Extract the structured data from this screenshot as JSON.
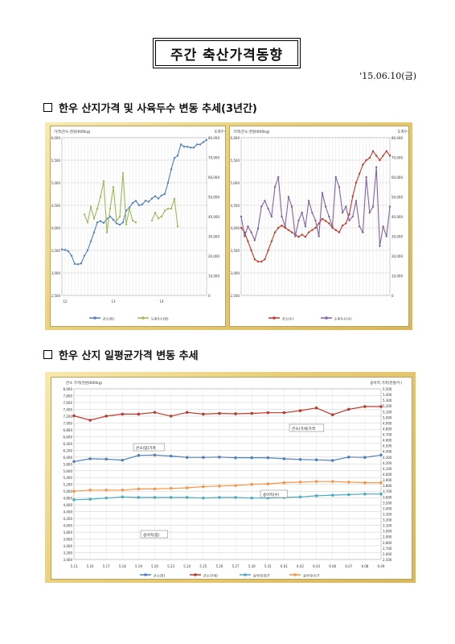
{
  "header": {
    "title": "주간 축산가격동향",
    "date": "'15.06.10(금)"
  },
  "sections": {
    "s1": "한우 산지가격 및 사육두수 변동 추세(3년간)",
    "s2": "한우 산지 일평균가격 변동 추세"
  },
  "colors": {
    "frame": "#e3c66c",
    "blue": "#4f81bd",
    "green": "#9bbb59",
    "red": "#c0392b",
    "purple": "#8064a2",
    "teal": "#4bacc6",
    "orange": "#f79646"
  },
  "chart_data": [
    {
      "type": "line",
      "left_axis_label": "가격(큰소:천원/600kg)",
      "right_axis_label": "도축두수",
      "left_ticks": [
        "6,000",
        "5,500",
        "5,000",
        "4,500",
        "4,000",
        "3,500",
        "3,000",
        "2,500"
      ],
      "right_ticks": [
        "80,000",
        "70,000",
        "60,000",
        "50,000",
        "40,000",
        "30,000",
        "20,000",
        "10,000",
        "0"
      ],
      "ylim_left": [
        2500,
        6000
      ],
      "ylim_right": [
        0,
        80000
      ],
      "year_labels": [
        "12",
        "13",
        "14"
      ],
      "series": [
        {
          "name": "큰소(암)",
          "axis": "left",
          "color": "#4f81bd",
          "values": [
            3520,
            3510,
            3480,
            3380,
            3200,
            3190,
            3210,
            3380,
            3500,
            3700,
            3900,
            4120,
            4150,
            4110,
            4200,
            4250,
            4180,
            4100,
            4070,
            4120,
            4380,
            4450,
            4550,
            4600,
            4500,
            4520,
            4600,
            4580,
            4650,
            4700,
            4650,
            4720,
            4750,
            5000,
            5300,
            5550,
            5600,
            5850,
            5800,
            5800,
            5780,
            5780,
            5850,
            5850,
            5900,
            5950
          ]
        },
        {
          "name": "도축두수(암)",
          "axis": "right",
          "color": "#9bbb59",
          "values": [
            null,
            null,
            null,
            null,
            null,
            null,
            null,
            41000,
            37000,
            45000,
            39000,
            44000,
            50000,
            58000,
            32000,
            44000,
            55000,
            38000,
            40000,
            62000,
            36000,
            44000,
            38000,
            37000,
            null,
            null,
            null,
            null,
            38000,
            42000,
            39000,
            40000,
            43000,
            44000,
            44000,
            49000,
            35000,
            null,
            null,
            null,
            null,
            null,
            null,
            null,
            null,
            null
          ]
        }
      ]
    },
    {
      "type": "line",
      "left_axis_label": "가격(큰소:천원/600kg)",
      "right_axis_label": "도축두수",
      "left_ticks": [
        "6,000",
        "5,500",
        "5,000",
        "4,500",
        "4,000",
        "3,500",
        "3,000",
        "2,500"
      ],
      "right_ticks": [
        "80,000",
        "70,000",
        "60,000",
        "50,000",
        "40,000",
        "30,000",
        "20,000",
        "10,000",
        "0"
      ],
      "ylim_left": [
        2500,
        6000
      ],
      "ylim_right": [
        0,
        80000
      ],
      "series": [
        {
          "name": "큰소(수)",
          "axis": "left",
          "color": "#c0392b",
          "values": [
            4000,
            3900,
            3700,
            3500,
            3300,
            3250,
            3250,
            3300,
            3500,
            3700,
            3900,
            4000,
            4050,
            4000,
            3950,
            3900,
            3850,
            3800,
            3850,
            3800,
            3900,
            3950,
            4000,
            4100,
            4200,
            4150,
            4100,
            4000,
            3950,
            3900,
            4050,
            4100,
            4300,
            4700,
            5000,
            5200,
            5400,
            5500,
            5550,
            5700,
            5600,
            5500,
            5600,
            5700,
            5600
          ]
        },
        {
          "name": "도축두수(수)",
          "axis": "right",
          "color": "#8064a2",
          "values": [
            40000,
            30000,
            35000,
            32000,
            28000,
            34000,
            45000,
            48000,
            44000,
            40000,
            55000,
            60000,
            40000,
            35000,
            50000,
            45000,
            30000,
            38000,
            42000,
            35000,
            48000,
            42000,
            38000,
            30000,
            52000,
            45000,
            40000,
            35000,
            60000,
            55000,
            42000,
            45000,
            38000,
            40000,
            48000,
            35000,
            32000,
            60000,
            42000,
            45000,
            65000,
            25000,
            35000,
            30000,
            45000
          ]
        }
      ]
    },
    {
      "type": "line",
      "left_axis_label": "큰소 가격(천원/600kg)",
      "right_axis_label": "송아지 가격(천원/두)",
      "categories": [
        "5.13",
        "5.16",
        "5.17",
        "5.18",
        "5.19",
        "5.20",
        "5.23",
        "5.24",
        "5.25",
        "5.26",
        "5.27",
        "5.30",
        "5.31",
        "6.01",
        "6.02",
        "6.03",
        "6.06",
        "6.07",
        "6.08",
        "6.09"
      ],
      "left_ticks": [
        "8,000",
        "7,800",
        "7,600",
        "7,400",
        "7,200",
        "7,000",
        "6,800",
        "6,600",
        "6,400",
        "6,200",
        "6,000",
        "5,800",
        "5,600",
        "5,400",
        "5,200",
        "5,000",
        "4,800",
        "4,600",
        "4,400",
        "4,200",
        "4,000",
        "3,800",
        "3,600",
        "3,400",
        "3,200",
        "3,000"
      ],
      "right_ticks": [
        "5,500",
        "5,400",
        "5,300",
        "5,200",
        "5,100",
        "5,000",
        "4,900",
        "4,800",
        "4,700",
        "4,600",
        "4,500",
        "4,400",
        "4,300",
        "4,200",
        "4,100",
        "4,000",
        "3,900",
        "3,800",
        "3,700",
        "3,600",
        "3,500",
        "3,400",
        "3,300",
        "3,200",
        "3,100",
        "3,000",
        "2,900",
        "2,800",
        "2,700",
        "2,600",
        "2,500"
      ],
      "ylim_left": [
        3000,
        8000
      ],
      "ylim_right": [
        2500,
        5500
      ],
      "annotations": [
        "큰소(암)가격",
        "큰소(거세)가격",
        "송아지(수)",
        "송아지(암)"
      ],
      "series": [
        {
          "name": "큰소(암)",
          "axis": "left",
          "color": "#4f81bd",
          "values": [
            5870,
            5950,
            5940,
            5910,
            6050,
            6060,
            6030,
            5990,
            5990,
            6000,
            5980,
            5980,
            5980,
            5950,
            5930,
            5920,
            5900,
            6000,
            5990,
            6060
          ]
        },
        {
          "name": "큰소(거세)",
          "axis": "left",
          "color": "#c0392b",
          "values": [
            7210,
            7080,
            7200,
            7260,
            7260,
            7310,
            7200,
            7310,
            7260,
            7280,
            7270,
            7280,
            7300,
            7300,
            7360,
            7440,
            7240,
            7400,
            7480,
            7480
          ]
        },
        {
          "name": "송아지(암)7",
          "axis": "right",
          "color": "#4bacc6",
          "values": [
            3550,
            3560,
            3580,
            3600,
            3590,
            3590,
            3590,
            3590,
            3580,
            3590,
            3590,
            3580,
            3580,
            3590,
            3600,
            3620,
            3630,
            3640,
            3650,
            3650
          ]
        },
        {
          "name": "송아지(수)7",
          "axis": "right",
          "color": "#f79646",
          "values": [
            3700,
            3720,
            3720,
            3720,
            3740,
            3740,
            3750,
            3760,
            3780,
            3790,
            3800,
            3820,
            3830,
            3850,
            3860,
            3870,
            3870,
            3860,
            3850,
            3850
          ]
        }
      ]
    }
  ]
}
